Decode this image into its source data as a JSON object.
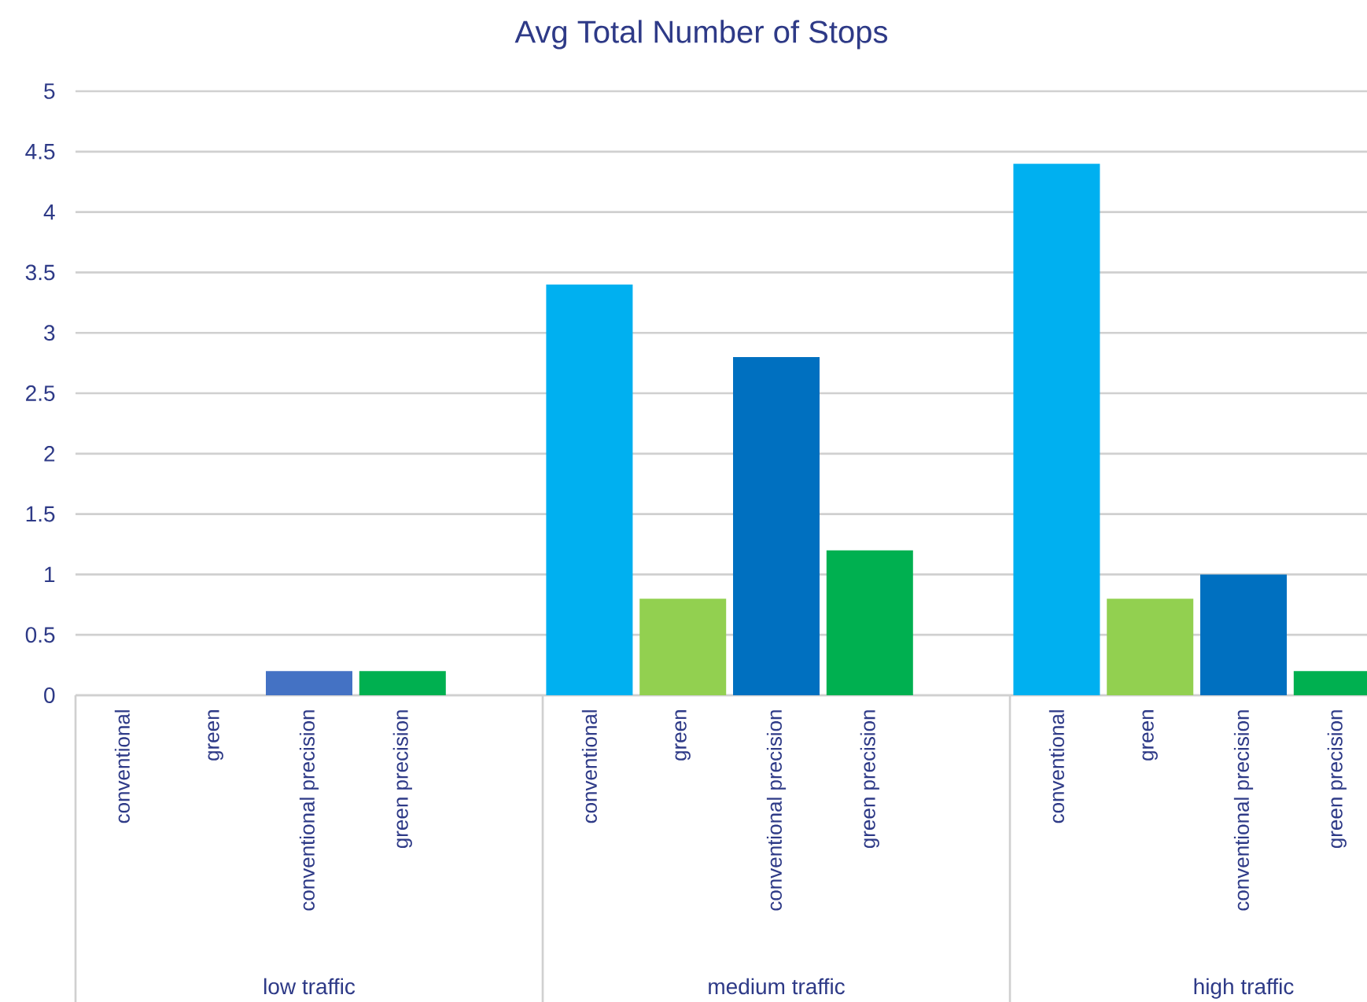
{
  "chart_data": {
    "type": "bar",
    "title": "Avg Total Number of Stops",
    "categories": [
      "conventional",
      "green",
      "conventional precision",
      "green precision",
      "conventional",
      "green",
      "conventional precision",
      "green precision",
      "conventional",
      "green",
      "conventional precision",
      "green precision"
    ],
    "values": [
      0,
      0,
      0.2,
      0.2,
      3.4,
      0.8,
      2.8,
      1.2,
      4.4,
      0.8,
      1.0,
      0.2
    ],
    "colors": [
      "#00b0f0",
      "#92d050",
      "#4472c4",
      "#00b050",
      "#00b0f0",
      "#92d050",
      "#0070c0",
      "#00b050",
      "#00b0f0",
      "#92d050",
      "#0070c0",
      "#00b050"
    ],
    "ylim": [
      0,
      5
    ],
    "yticks": [
      0,
      0.5,
      1,
      1.5,
      2,
      2.5,
      3,
      3.5,
      4,
      4.5,
      5
    ],
    "grid": "y",
    "annotations": [
      "low traffic",
      "medium traffic",
      "high traffic"
    ]
  }
}
